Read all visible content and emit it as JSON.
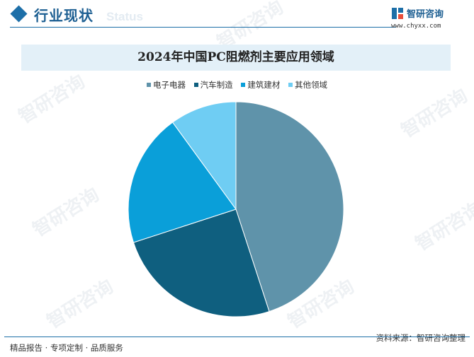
{
  "header": {
    "title": "行业现状",
    "ghost_text": "Status"
  },
  "brand": {
    "name": "智研咨询",
    "url": "www.chyxx.com"
  },
  "watermark_text": "智研咨询",
  "chart_data": {
    "type": "pie",
    "title": "2024年中国PC阻燃剂主要应用领域",
    "categories": [
      "电子电器",
      "汽车制造",
      "建筑建材",
      "其他领域"
    ],
    "values": [
      45,
      25,
      20,
      10
    ],
    "unit": "%",
    "colors": [
      "#5f93aa",
      "#0f5f7f",
      "#0a9fd9",
      "#6fcdf3"
    ],
    "legend_position": "top"
  },
  "footer": {
    "left": "精品报告 · 专项定制 · 品质服务",
    "source": "资料来源：智研咨询整理"
  }
}
